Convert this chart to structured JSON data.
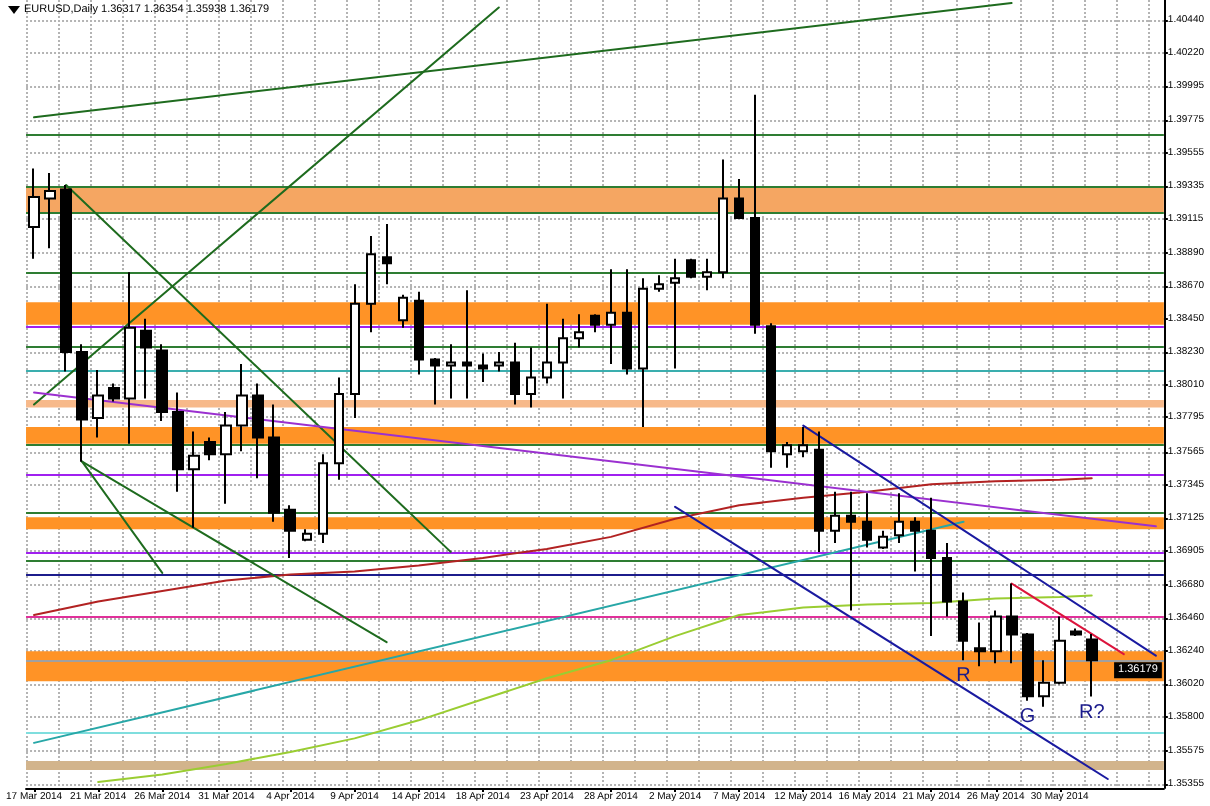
{
  "chart_data": {
    "type": "candlestick",
    "title": "EURUSD,Daily 1.36317 1.36354 1.35938 1.36179",
    "categories": [
      "17 Mar 2014",
      null,
      null,
      null,
      "21 Mar 2014",
      null,
      null,
      null,
      "26 Mar 2014",
      null,
      null,
      null,
      "31 Mar 2014",
      null,
      null,
      null,
      "4 Apr 2014",
      null,
      null,
      null,
      "9 Apr 2014",
      null,
      null,
      null,
      "14 Apr 2014",
      null,
      null,
      null,
      "18 Apr 2014",
      null,
      null,
      null,
      "23 Apr 2014",
      null,
      null,
      null,
      "28 Apr 2014",
      null,
      null,
      null,
      "2 May 2014",
      null,
      null,
      null,
      "7 May 2014",
      null,
      null,
      null,
      "12 May 2014",
      null,
      null,
      null,
      "16 May 2014",
      null,
      null,
      null,
      "21 May 2014",
      null,
      null,
      null,
      "26 May 2014",
      null,
      null,
      null,
      "30 May 2014",
      null,
      null,
      null,
      null,
      null,
      null
    ],
    "ohlc": [
      [
        1.3906,
        1.3945,
        1.3885,
        1.3926
      ],
      [
        1.3925,
        1.3942,
        1.3892,
        1.393
      ],
      [
        1.3931,
        1.3934,
        1.381,
        1.3823
      ],
      [
        1.3823,
        1.3828,
        1.375,
        1.3778
      ],
      [
        1.3779,
        1.3811,
        1.3766,
        1.3794
      ],
      [
        1.3799,
        1.3802,
        1.379,
        1.3792
      ],
      [
        1.3792,
        1.3876,
        1.3762,
        1.3839
      ],
      [
        1.3837,
        1.3845,
        1.3792,
        1.3826
      ],
      [
        1.3824,
        1.3828,
        1.3777,
        1.3783
      ],
      [
        1.3783,
        1.3796,
        1.373,
        1.3745
      ],
      [
        1.3745,
        1.377,
        1.3706,
        1.3754
      ],
      [
        1.3763,
        1.3766,
        1.3751,
        1.3755
      ],
      [
        1.3755,
        1.3783,
        1.3722,
        1.3774
      ],
      [
        1.3774,
        1.3815,
        1.3757,
        1.3794
      ],
      [
        1.3794,
        1.3802,
        1.3739,
        1.3766
      ],
      [
        1.3766,
        1.3788,
        1.371,
        1.3716
      ],
      [
        1.3718,
        1.3721,
        1.3686,
        1.3704
      ],
      [
        1.3698,
        1.3705,
        1.3697,
        1.3702
      ],
      [
        1.3702,
        1.3755,
        1.3696,
        1.3749
      ],
      [
        1.3749,
        1.3806,
        1.3738,
        1.3795
      ],
      [
        1.3795,
        1.3868,
        1.3779,
        1.3855
      ],
      [
        1.3855,
        1.39,
        1.3836,
        1.3888
      ],
      [
        1.3886,
        1.3908,
        1.3868,
        1.3882
      ],
      [
        1.3844,
        1.3861,
        1.3839,
        1.3859
      ],
      [
        1.3857,
        1.3863,
        1.3808,
        1.3818
      ],
      [
        1.3818,
        1.3819,
        1.3788,
        1.3814
      ],
      [
        1.3814,
        1.3828,
        1.3792,
        1.3816
      ],
      [
        1.3816,
        1.3864,
        1.3792,
        1.3814
      ],
      [
        1.3814,
        1.3822,
        1.3803,
        1.3812
      ],
      [
        1.3814,
        1.3823,
        1.381,
        1.3816
      ],
      [
        1.3816,
        1.3829,
        1.3788,
        1.3795
      ],
      [
        1.3795,
        1.3826,
        1.3786,
        1.3806
      ],
      [
        1.3806,
        1.3855,
        1.3802,
        1.3816
      ],
      [
        1.3816,
        1.3845,
        1.3792,
        1.3832
      ],
      [
        1.3832,
        1.3848,
        1.3826,
        1.3836
      ],
      [
        1.3847,
        1.3848,
        1.3836,
        1.3841
      ],
      [
        1.3841,
        1.3878,
        1.3815,
        1.3849
      ],
      [
        1.3849,
        1.3878,
        1.3808,
        1.3812
      ],
      [
        1.3812,
        1.3872,
        1.3773,
        1.3865
      ],
      [
        1.3865,
        1.3874,
        1.3863,
        1.3868
      ],
      [
        1.3869,
        1.3885,
        1.3812,
        1.3872
      ],
      [
        1.3884,
        1.3885,
        1.3872,
        1.3873
      ],
      [
        1.3873,
        1.3885,
        1.3864,
        1.3876
      ],
      [
        1.3876,
        1.3951,
        1.3872,
        1.3925
      ],
      [
        1.3925,
        1.3938,
        1.3912,
        1.3912
      ],
      [
        1.3912,
        1.3994,
        1.3835,
        1.3841
      ],
      [
        1.384,
        1.3842,
        1.3746,
        1.3757
      ],
      [
        1.3755,
        1.3763,
        1.3746,
        1.3761
      ],
      [
        1.3757,
        1.3773,
        1.3753,
        1.3761
      ],
      [
        1.3758,
        1.377,
        1.369,
        1.3704
      ],
      [
        1.3704,
        1.373,
        1.3696,
        1.3714
      ],
      [
        1.3714,
        1.373,
        1.3651,
        1.371
      ],
      [
        1.371,
        1.3729,
        1.3693,
        1.3698
      ],
      [
        1.3693,
        1.3704,
        1.3692,
        1.37
      ],
      [
        1.3701,
        1.3729,
        1.3696,
        1.371
      ],
      [
        1.371,
        1.3713,
        1.3677,
        1.3704
      ],
      [
        1.3704,
        1.3726,
        1.3634,
        1.3686
      ],
      [
        1.3686,
        1.3696,
        1.3647,
        1.3657
      ],
      [
        1.3657,
        1.3663,
        1.3618,
        1.3631
      ],
      [
        1.3626,
        1.3643,
        1.3614,
        1.3624
      ],
      [
        1.3624,
        1.3651,
        1.3616,
        1.3647
      ],
      [
        1.3647,
        1.3669,
        1.3616,
        1.3635
      ],
      [
        1.3635,
        1.3636,
        1.3591,
        1.3594
      ],
      [
        1.3594,
        1.3618,
        1.3587,
        1.3603
      ],
      [
        1.3603,
        1.3647,
        1.3602,
        1.3631
      ],
      [
        1.3637,
        1.3639,
        1.3634,
        1.3635
      ],
      [
        1.36317,
        1.36354,
        1.35938,
        1.36179
      ],
      null,
      null,
      null,
      null
    ],
    "value_labels": [
      null,
      null,
      null,
      null,
      null,
      null,
      null,
      null,
      null,
      null,
      null,
      null,
      null,
      null,
      null,
      null,
      null,
      null,
      null,
      null,
      null,
      null,
      null,
      null,
      null,
      null,
      null,
      null,
      null,
      null,
      null,
      null,
      null,
      null,
      null,
      null,
      null,
      null,
      null,
      null,
      null,
      null,
      null,
      null,
      null,
      null,
      null,
      null,
      null,
      null,
      null,
      null,
      null,
      null,
      null,
      null,
      null,
      null,
      "R",
      null,
      null,
      null,
      "G",
      null,
      null,
      null,
      "R?",
      null,
      null,
      null,
      null
    ],
    "series": [
      {
        "type": "line",
        "color": "#b22222",
        "values": [
          1.3648,
          null,
          null,
          null,
          1.3657,
          null,
          null,
          null,
          1.3664,
          null,
          null,
          null,
          1.3671,
          null,
          null,
          null,
          1.3675,
          null,
          null,
          null,
          1.3677,
          null,
          null,
          null,
          1.3681,
          null,
          null,
          null,
          1.3686,
          null,
          null,
          null,
          1.3692,
          null,
          null,
          null,
          1.37,
          null,
          null,
          null,
          1.3712,
          null,
          null,
          null,
          1.3721,
          null,
          null,
          null,
          1.3726,
          null,
          null,
          null,
          1.373,
          null,
          null,
          null,
          1.3735,
          null,
          null,
          null,
          1.3737,
          null,
          null,
          null,
          1.3738,
          null,
          1.3739,
          null,
          null,
          null,
          null
        ]
      },
      {
        "type": "line",
        "color": "#9acd32",
        "values": [
          null,
          null,
          null,
          null,
          1.3537,
          null,
          null,
          null,
          1.3542,
          null,
          null,
          null,
          1.3549,
          null,
          null,
          null,
          1.3557,
          null,
          null,
          null,
          1.3566,
          null,
          null,
          null,
          1.3578,
          null,
          null,
          null,
          1.3592,
          null,
          null,
          null,
          1.3606,
          null,
          null,
          null,
          1.3618,
          null,
          null,
          null,
          1.3634,
          null,
          null,
          null,
          1.3648,
          null,
          null,
          null,
          1.3653,
          null,
          null,
          null,
          1.3655,
          null,
          null,
          null,
          1.3656,
          null,
          null,
          null,
          1.3659,
          null,
          null,
          null,
          1.366,
          null,
          1.3661,
          null,
          null,
          null,
          null
        ]
      },
      {
        "type": "line",
        "color": "#1e6b1e",
        "values": [
          1.3979,
          null,
          null,
          null,
          null,
          null,
          null,
          null,
          null,
          null,
          null,
          null,
          null,
          null,
          null,
          null,
          null,
          null,
          null,
          null,
          null,
          null,
          null,
          null,
          null,
          null,
          null,
          null,
          null,
          null,
          null,
          null,
          null,
          null,
          null,
          null,
          null,
          null,
          null,
          null,
          null,
          null,
          null,
          null,
          null,
          null,
          null,
          null,
          null,
          null,
          null,
          null,
          null,
          null,
          null,
          null,
          null,
          null,
          null,
          null,
          null,
          1.4055,
          null,
          null,
          null,
          null,
          null,
          null,
          null,
          null,
          null
        ]
      },
      {
        "type": "line",
        "color": "#1e6b1e",
        "values": [
          1.3788,
          null,
          null,
          null,
          null,
          null,
          null,
          null,
          null,
          null,
          null,
          null,
          null,
          null,
          null,
          null,
          null,
          null,
          null,
          null,
          null,
          null,
          null,
          null,
          null,
          null,
          null,
          null,
          null,
          1.4052,
          null,
          null,
          null,
          null,
          null,
          null,
          null,
          null,
          null,
          null,
          null,
          null,
          null,
          null,
          null,
          null,
          null,
          null,
          null,
          null,
          null,
          null,
          null,
          null,
          null,
          null,
          null,
          null,
          null,
          null,
          null,
          null,
          null,
          null,
          null,
          null,
          null,
          null,
          null,
          null,
          null
        ]
      },
      {
        "type": "line",
        "color": "#1e6b1e",
        "values": [
          null,
          null,
          1.3934,
          null,
          null,
          null,
          null,
          null,
          null,
          null,
          null,
          null,
          null,
          null,
          null,
          null,
          null,
          null,
          null,
          null,
          null,
          null,
          null,
          null,
          null,
          null,
          1.369,
          null,
          null,
          null,
          null,
          null,
          null,
          null,
          null,
          null,
          null,
          null,
          null,
          null,
          null,
          null,
          null,
          null,
          null,
          null,
          null,
          null,
          null,
          null,
          null,
          null,
          null,
          null,
          null,
          null,
          null,
          null,
          null,
          null,
          null,
          null,
          null,
          null,
          null,
          null,
          null,
          null,
          null,
          null,
          null
        ]
      },
      {
        "type": "line",
        "color": "#1e6b1e",
        "values": [
          null,
          null,
          null,
          1.375,
          null,
          null,
          null,
          null,
          1.3676,
          null,
          null,
          null,
          null,
          null,
          null,
          null,
          null,
          null,
          null,
          null,
          null,
          null,
          null,
          null,
          null,
          null,
          null,
          null,
          null,
          null,
          null,
          null,
          null,
          null,
          null,
          null,
          null,
          null,
          null,
          null,
          null,
          null,
          null,
          null,
          null,
          null,
          null,
          null,
          null,
          null,
          null,
          null,
          null,
          null,
          null,
          null,
          null,
          null,
          null,
          null,
          null,
          null,
          null,
          null,
          null,
          null,
          null,
          null,
          null,
          null,
          null
        ]
      },
      {
        "type": "line",
        "color": "#1e6b1e",
        "values": [
          null,
          null,
          null,
          1.375,
          null,
          null,
          null,
          null,
          null,
          null,
          null,
          null,
          null,
          null,
          null,
          null,
          null,
          null,
          null,
          null,
          null,
          null,
          1.363,
          null,
          null,
          null,
          null,
          null,
          null,
          null,
          null,
          null,
          null,
          null,
          null,
          null,
          null,
          null,
          null,
          null,
          null,
          null,
          null,
          null,
          null,
          null,
          null,
          null,
          null,
          null,
          null,
          null,
          null,
          null,
          null,
          null,
          null,
          null,
          null,
          null,
          null,
          null,
          null,
          null,
          null,
          null,
          null,
          null,
          null,
          null,
          null
        ]
      },
      {
        "type": "line",
        "color": "#27a7a7",
        "values": [
          1.3563,
          null,
          null,
          null,
          null,
          null,
          null,
          null,
          null,
          null,
          null,
          null,
          null,
          null,
          null,
          null,
          null,
          null,
          null,
          null,
          null,
          null,
          null,
          null,
          null,
          null,
          null,
          null,
          null,
          null,
          null,
          null,
          null,
          null,
          null,
          null,
          null,
          null,
          null,
          null,
          null,
          null,
          null,
          null,
          null,
          null,
          null,
          null,
          null,
          null,
          null,
          null,
          null,
          null,
          null,
          null,
          null,
          null,
          1.371,
          null,
          null,
          null,
          null,
          null,
          null,
          null,
          null,
          null,
          null,
          null,
          null
        ]
      },
      {
        "type": "line",
        "color": "#9b30d0",
        "values": [
          1.3796,
          null,
          null,
          null,
          null,
          null,
          null,
          null,
          null,
          null,
          null,
          null,
          null,
          null,
          null,
          null,
          null,
          null,
          null,
          null,
          null,
          null,
          null,
          null,
          null,
          null,
          null,
          null,
          null,
          null,
          null,
          null,
          null,
          null,
          null,
          null,
          null,
          null,
          null,
          null,
          null,
          null,
          null,
          null,
          null,
          null,
          null,
          null,
          null,
          null,
          null,
          null,
          null,
          null,
          null,
          null,
          null,
          null,
          null,
          null,
          null,
          null,
          null,
          null,
          null,
          null,
          null,
          null,
          null,
          null,
          1.3707
        ]
      },
      {
        "type": "line",
        "color": "#1a1aa0",
        "values": [
          null,
          null,
          null,
          null,
          null,
          null,
          null,
          null,
          null,
          null,
          null,
          null,
          null,
          null,
          null,
          null,
          null,
          null,
          null,
          null,
          null,
          null,
          null,
          null,
          null,
          null,
          null,
          null,
          null,
          null,
          null,
          null,
          null,
          null,
          null,
          null,
          null,
          null,
          null,
          null,
          null,
          null,
          null,
          null,
          null,
          null,
          null,
          null,
          1.3774,
          null,
          null,
          null,
          null,
          null,
          null,
          null,
          null,
          null,
          null,
          null,
          null,
          null,
          null,
          null,
          null,
          null,
          null,
          null,
          null,
          null,
          1.3621
        ]
      },
      {
        "type": "line",
        "color": "#1a1aa0",
        "values": [
          null,
          null,
          null,
          null,
          null,
          null,
          null,
          null,
          null,
          null,
          null,
          null,
          null,
          null,
          null,
          null,
          null,
          null,
          null,
          null,
          null,
          null,
          null,
          null,
          null,
          null,
          null,
          null,
          null,
          null,
          null,
          null,
          null,
          null,
          null,
          null,
          null,
          null,
          null,
          null,
          1.372,
          null,
          null,
          null,
          null,
          null,
          null,
          null,
          null,
          null,
          null,
          null,
          null,
          null,
          null,
          null,
          null,
          null,
          null,
          null,
          null,
          null,
          null,
          null,
          null,
          null,
          null,
          1.3539,
          null,
          null,
          null
        ]
      },
      {
        "type": "line",
        "color": "#dc143c",
        "values": [
          null,
          null,
          null,
          null,
          null,
          null,
          null,
          null,
          null,
          null,
          null,
          null,
          null,
          null,
          null,
          null,
          null,
          null,
          null,
          null,
          null,
          null,
          null,
          null,
          null,
          null,
          null,
          null,
          null,
          null,
          null,
          null,
          null,
          null,
          null,
          null,
          null,
          null,
          null,
          null,
          null,
          null,
          null,
          null,
          null,
          null,
          null,
          null,
          null,
          null,
          null,
          null,
          null,
          null,
          null,
          null,
          null,
          null,
          null,
          null,
          null,
          1.3669,
          null,
          null,
          null,
          null,
          null,
          null,
          1.3622,
          null,
          null
        ]
      }
    ],
    "ref_lines": [
      {
        "axis": "y",
        "value": 1.3967,
        "color": "#2e7d32"
      },
      {
        "axis": "y",
        "value": 1.3933,
        "color": "#2e7d32"
      },
      {
        "axis": "y",
        "value": 1.3916,
        "color": "#2e7d32"
      },
      {
        "axis": "y",
        "value": 1.3876,
        "color": "#2e7d32"
      },
      {
        "axis": "y",
        "value": 1.384,
        "color": "#a020f0"
      },
      {
        "axis": "y",
        "value": 1.3826,
        "color": "#2e7d32"
      },
      {
        "axis": "y",
        "value": 1.3811,
        "color": "#3aaeae"
      },
      {
        "axis": "y",
        "value": 1.3762,
        "color": "#2e7d32"
      },
      {
        "axis": "y",
        "value": 1.3742,
        "color": "#a020f0"
      },
      {
        "axis": "y",
        "value": 1.3716,
        "color": "#2e7d32"
      },
      {
        "axis": "y",
        "value": 1.369,
        "color": "#a020f0"
      },
      {
        "axis": "y",
        "value": 1.3684,
        "color": "#2e7d32"
      },
      {
        "axis": "y",
        "value": 1.3675,
        "color": "#1c1c8c"
      },
      {
        "axis": "y",
        "value": 1.3647,
        "color": "#e0309a"
      },
      {
        "axis": "y",
        "value": 1.357,
        "color": "#7fdede"
      },
      {
        "axis": "y",
        "value": 1.36179,
        "label": "1.36179",
        "color": "#a0a0a0"
      }
    ],
    "bands": [
      {
        "axis": "y",
        "from": 1.3916,
        "to": 1.3933,
        "color": "#f5a662"
      },
      {
        "axis": "y",
        "from": 1.3841,
        "to": 1.3856,
        "color": "#ff9326"
      },
      {
        "axis": "y",
        "from": 1.3786,
        "to": 1.3791,
        "color": "#f7b98a"
      },
      {
        "axis": "y",
        "from": 1.3762,
        "to": 1.3773,
        "color": "#ff9326"
      },
      {
        "axis": "y",
        "from": 1.3705,
        "to": 1.3713,
        "color": "#ff9326"
      },
      {
        "axis": "y",
        "from": 1.3604,
        "to": 1.3624,
        "color": "#ff9326"
      },
      {
        "axis": "y",
        "from": 1.3545,
        "to": 1.3551,
        "color": "#d2b48c"
      }
    ],
    "ylim": [
      1.3533,
      1.4057
    ],
    "yticks": [
      {
        "value": 1.4044,
        "label": "1.40440"
      },
      {
        "value": 1.4022,
        "label": "1.40220"
      },
      1.39995,
      1.39775,
      1.39555,
      1.39335,
      1.39115,
      {
        "value": 1.3889,
        "label": "1.38890"
      },
      {
        "value": 1.3867,
        "label": "1.38670"
      },
      {
        "value": 1.3845,
        "label": "1.38450"
      },
      {
        "value": 1.3823,
        "label": "1.38230"
      },
      {
        "value": 1.3801,
        "label": "1.38010"
      },
      1.37795,
      1.37565,
      1.37345,
      1.37125,
      1.36905,
      {
        "value": 1.3668,
        "label": "1.36680"
      },
      {
        "value": 1.3646,
        "label": "1.36460"
      },
      {
        "value": 1.3624,
        "label": "1.36240"
      },
      {
        "value": 1.3602,
        "label": "1.36020"
      },
      {
        "value": 1.358,
        "label": "1.35800"
      },
      1.35575,
      1.35355
    ],
    "grid": true,
    "marker": "none",
    "line_style": "solid"
  }
}
